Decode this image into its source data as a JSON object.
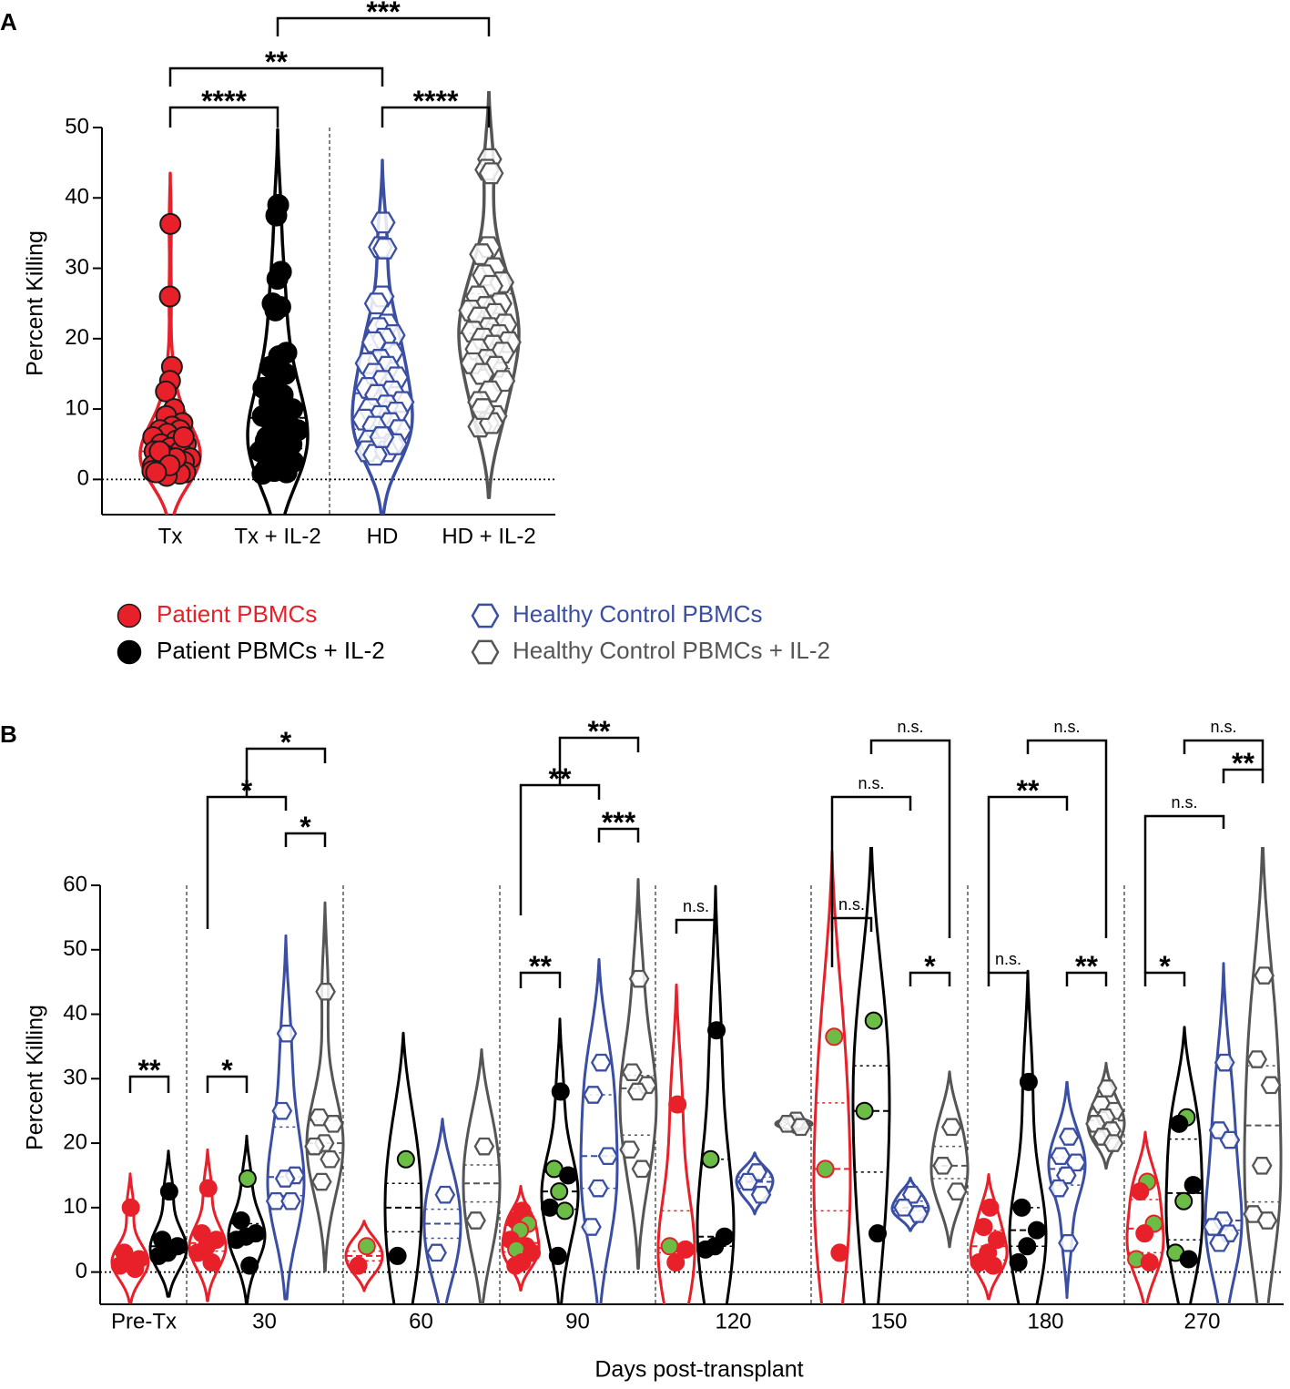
{
  "chart_data": [
    {
      "type": "violin",
      "panel": "A",
      "ylabel": "Percent Killing",
      "categories": [
        "Tx",
        "Tx + IL-2",
        "HD",
        "HD + IL-2"
      ],
      "ylim": [
        -5,
        50
      ],
      "yticks": [
        0,
        10,
        20,
        30,
        40,
        50
      ],
      "zero_line": true,
      "dividers_after": [
        1
      ],
      "series": [
        {
          "name": "Patient PBMCs",
          "color": "#e8202a",
          "edgecolor": "#1a1a1a",
          "marker": "circle",
          "values": [
            [
              36.3,
              26,
              16,
              14,
              12.5,
              10,
              9,
              8,
              7.5,
              7,
              7,
              6.5,
              6,
              5.5,
              5,
              5,
              4.5,
              4,
              4,
              3.5,
              3,
              3,
              2.5,
              2.5,
              2,
              2,
              1.5,
              1.5,
              1,
              1,
              1,
              0.8,
              0.5,
              1.2,
              3,
              4,
              6,
              2,
              1
            ],
            null,
            null,
            null
          ]
        },
        {
          "name": "Patient PBMCs + IL-2",
          "color": "#000000",
          "edgecolor": "#000000",
          "marker": "circle",
          "values": [
            null,
            [
              39,
              37.5,
              29.5,
              28.5,
              25,
              24.5,
              24,
              18,
              17.5,
              16,
              15,
              14,
              13,
              12,
              11,
              10,
              9.5,
              9,
              8.5,
              8,
              7,
              6,
              5.5,
              5,
              4.5,
              4,
              3.5,
              3,
              2.5,
              2,
              1.5,
              1,
              1.2,
              0.8,
              5,
              6
            ],
            null,
            null
          ]
        },
        {
          "name": "Healthy Control PBMCs",
          "color": "#3a4ea3",
          "edgecolor": "#3a4ea3",
          "marker": "hexagon",
          "values": [
            null,
            null,
            [
              36.5,
              33,
              32.8,
              26,
              25,
              22,
              21.5,
              20.5,
              20,
              19.5,
              18,
              17,
              16.5,
              16,
              15,
              14.5,
              14,
              13,
              12.5,
              12,
              11,
              10.5,
              10,
              9.5,
              9,
              8.5,
              8,
              7.5,
              7,
              6,
              5.5,
              5,
              4.5,
              4,
              4,
              3.5,
              5,
              6
            ],
            null
          ]
        },
        {
          "name": "Healthy Control PBMCs + IL-2",
          "color": "#555555",
          "edgecolor": "#555555",
          "marker": "hexagon",
          "values": [
            null,
            null,
            null,
            [
              45.5,
              44,
              43.5,
              33,
              32,
              30,
              29,
              28,
              27.5,
              26,
              25,
              24.5,
              24,
              23.5,
              23,
              22,
              21.5,
              21,
              20.5,
              20,
              19.5,
              19,
              18.5,
              18,
              17,
              16.5,
              16,
              15,
              14,
              12.5,
              11,
              9,
              8,
              7.5,
              8,
              10
            ]
          ]
        }
      ],
      "comparisons": [
        {
          "groups": [
            0,
            1
          ],
          "label": "****"
        },
        {
          "groups": [
            2,
            3
          ],
          "label": "****"
        },
        {
          "groups": [
            0,
            2
          ],
          "label": "**"
        },
        {
          "groups": [
            1,
            3
          ],
          "label": "***"
        }
      ]
    },
    {
      "type": "violin",
      "panel": "B",
      "ylabel": "Percent Killing",
      "xlabel": "Days post-transplant",
      "categories": [
        "Pre-Tx",
        "30",
        "60",
        "90",
        "120",
        "150",
        "180",
        "270"
      ],
      "ylim": [
        -5,
        60
      ],
      "yticks": [
        0,
        10,
        20,
        30,
        40,
        50,
        60
      ],
      "zero_line": true,
      "dividers": true,
      "highlight_color": "#6cbd45",
      "series": [
        {
          "color": "#e8202a",
          "edgecolor": "#e8202a",
          "marker": "circle",
          "values": [
            [
              10,
              3,
              2,
              1.5,
              1,
              0.5
            ],
            [
              13,
              6,
              5,
              4,
              3,
              1.5
            ],
            [
              4,
              1
            ],
            [
              9.5,
              8,
              7.5,
              6.5,
              5,
              4,
              3.5,
              3,
              1.5,
              1
            ],
            [
              26,
              4,
              3.5,
              1.5
            ],
            [
              36.5,
              16,
              3
            ],
            [
              10,
              7,
              5,
              3,
              1.5,
              1
            ],
            [
              14,
              12.5,
              7.5,
              6,
              2,
              1.5
            ]
          ],
          "highlight": [
            [
              0,
              0,
              0,
              0,
              0,
              0
            ],
            [
              0,
              0,
              0,
              0,
              0,
              0
            ],
            [
              1,
              0
            ],
            [
              0,
              0,
              1,
              1,
              0,
              0,
              1,
              0,
              0,
              0
            ],
            [
              0,
              1,
              0,
              0
            ],
            [
              1,
              1,
              0
            ],
            [
              0,
              0,
              0,
              0,
              0,
              0
            ],
            [
              1,
              0,
              1,
              0,
              1,
              0
            ]
          ]
        },
        {
          "color": "#000000",
          "edgecolor": "#000000",
          "marker": "circle",
          "values": [
            [
              12.5,
              5,
              4,
              3,
              2.5
            ],
            [
              14.5,
              8,
              6,
              5.5,
              5,
              1
            ],
            [
              17.5,
              2.5
            ],
            [
              28,
              16,
              15,
              12.5,
              10,
              9.5,
              2.5
            ],
            [
              37.5,
              17.5,
              5.5,
              4,
              3.5
            ],
            [
              39,
              25,
              6
            ],
            [
              29.5,
              10,
              6.5,
              4,
              1.5
            ],
            [
              24,
              23,
              13.5,
              11,
              3,
              2
            ]
          ],
          "highlight": [
            [
              0,
              0,
              0,
              0,
              0
            ],
            [
              1,
              0,
              0,
              0,
              0,
              0
            ],
            [
              1,
              0
            ],
            [
              0,
              1,
              0,
              1,
              0,
              1,
              0
            ],
            [
              0,
              1,
              0,
              0,
              0
            ],
            [
              1,
              1,
              0
            ],
            [
              0,
              0,
              0,
              0,
              0
            ],
            [
              1,
              0,
              0,
              1,
              1,
              0
            ]
          ]
        },
        {
          "color": "#3a4ea3",
          "edgecolor": "#3a4ea3",
          "marker": "hexagon",
          "values": [
            null,
            [
              37,
              25,
              15,
              14.5,
              11,
              11
            ],
            [
              12,
              3
            ],
            [
              32.5,
              27.5,
              18,
              13,
              7
            ],
            [
              15.5,
              14,
              12
            ],
            [
              12,
              10,
              9
            ],
            [
              21,
              18,
              17,
              15,
              13,
              4.5
            ],
            [
              32.5,
              22,
              20.5,
              8,
              7,
              6,
              4.5
            ]
          ]
        },
        {
          "color": "#555555",
          "edgecolor": "#555555",
          "marker": "hexagon",
          "values": [
            null,
            [
              43.5,
              24,
              23,
              20,
              19.5,
              17.5,
              14
            ],
            [
              19.5,
              8
            ],
            [
              45.5,
              31,
              29,
              28,
              19,
              16
            ],
            [
              23.5,
              23,
              22.5
            ],
            [
              22.5,
              16.5,
              12.5
            ],
            [
              28.5,
              26,
              25,
              24,
              23,
              22,
              21,
              20
            ],
            [
              46,
              33,
              29,
              16.5,
              9,
              8
            ]
          ]
        }
      ],
      "comparisons": [
        {
          "category": 0,
          "groups": [
            0,
            1
          ],
          "label": "**"
        },
        {
          "category": 1,
          "groups": [
            0,
            1
          ],
          "label": "*"
        },
        {
          "category": 1,
          "groups": [
            2,
            3
          ],
          "label": "*"
        },
        {
          "category": 1,
          "groups": [
            0,
            2
          ],
          "label": "*"
        },
        {
          "category": 1,
          "groups": [
            1,
            3
          ],
          "label": "*"
        },
        {
          "category": 3,
          "groups": [
            0,
            1
          ],
          "label": "**"
        },
        {
          "category": 3,
          "groups": [
            2,
            3
          ],
          "label": "***"
        },
        {
          "category": 3,
          "groups": [
            0,
            2
          ],
          "label": "**"
        },
        {
          "category": 3,
          "groups": [
            1,
            3
          ],
          "label": "**"
        },
        {
          "category": 4,
          "groups": [
            0,
            1
          ],
          "label": "n.s."
        },
        {
          "category": 5,
          "groups": [
            0,
            1
          ],
          "label": "n.s."
        },
        {
          "category": 5,
          "groups": [
            2,
            3
          ],
          "label": "*"
        },
        {
          "category": 5,
          "groups": [
            0,
            2
          ],
          "label": "n.s."
        },
        {
          "category": 5,
          "groups": [
            1,
            3
          ],
          "label": "n.s."
        },
        {
          "category": 6,
          "groups": [
            0,
            1
          ],
          "label": "n.s."
        },
        {
          "category": 6,
          "groups": [
            2,
            3
          ],
          "label": "**"
        },
        {
          "category": 6,
          "groups": [
            0,
            2
          ],
          "label": "**"
        },
        {
          "category": 6,
          "groups": [
            1,
            3
          ],
          "label": "n.s."
        },
        {
          "category": 7,
          "groups": [
            0,
            1
          ],
          "label": "*"
        },
        {
          "category": 7,
          "groups": [
            0,
            2
          ],
          "label": "n.s."
        },
        {
          "category": 7,
          "groups": [
            2,
            3
          ],
          "label": "**"
        },
        {
          "category": 7,
          "groups": [
            1,
            3
          ],
          "label": "n.s."
        }
      ]
    }
  ]
}
